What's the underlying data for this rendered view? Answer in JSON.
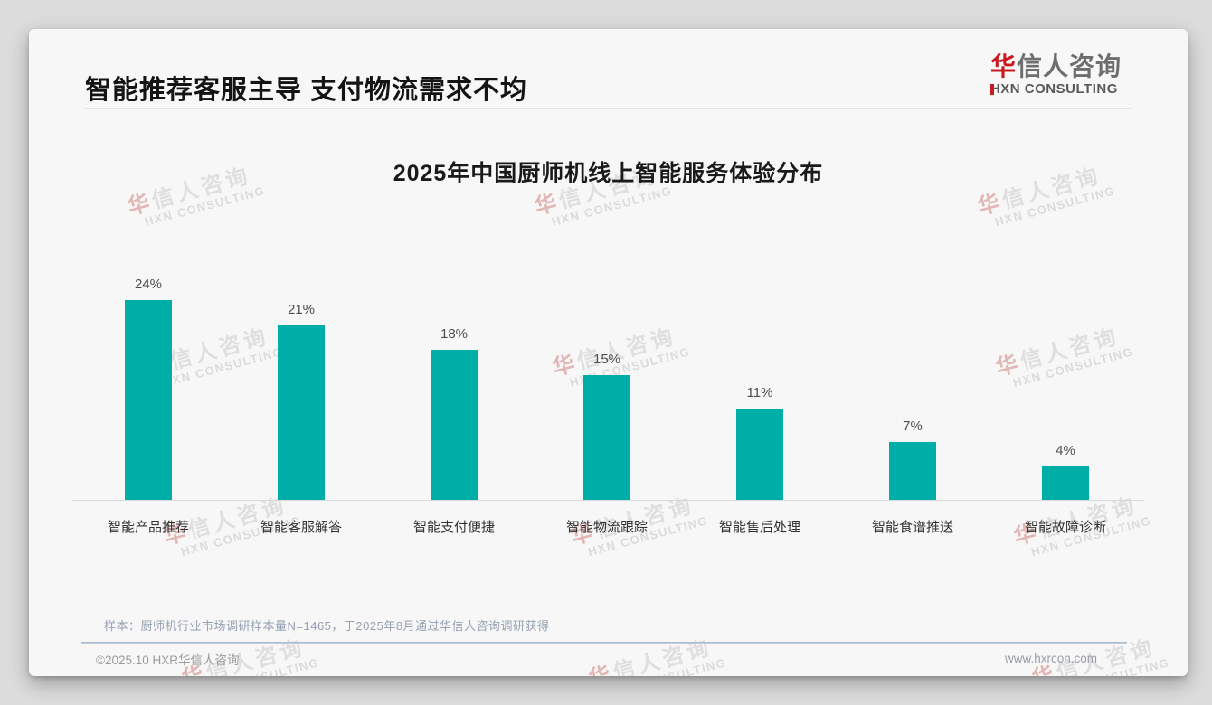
{
  "header": {
    "title": "智能推荐客服主导 支付物流需求不均",
    "logo": {
      "cn_first": "华",
      "cn_rest": "信人咨询",
      "en": "HXN CONSULTING"
    }
  },
  "watermark": {
    "cn_first": "华",
    "cn_rest": "信人咨询",
    "en": "HXN CONSULTING"
  },
  "chart_data": {
    "type": "bar",
    "title": "2025年中国厨师机线上智能服务体验分布",
    "categories": [
      "智能产品推荐",
      "智能客服解答",
      "智能支付便捷",
      "智能物流跟踪",
      "智能售后处理",
      "智能食谱推送",
      "智能故障诊断"
    ],
    "values": [
      24,
      21,
      18,
      15,
      11,
      7,
      4
    ],
    "value_labels": [
      "24%",
      "21%",
      "18%",
      "15%",
      "11%",
      "7%",
      "4%"
    ],
    "unit": "%",
    "xlabel": "",
    "ylabel": "",
    "ylim": [
      0,
      26
    ],
    "grid": false,
    "legend": false,
    "bar_color": "#00AEA8"
  },
  "footnote": "样本：厨师机行业市场调研样本量N=1465，于2025年8月通过华信人咨询调研获得",
  "footer": {
    "copyright": "©2025.10 HXR华信人咨询",
    "website": "www.hxrcon.com"
  },
  "colors": {
    "accent_teal": "#00AEA8",
    "logo_red": "#C8191E",
    "divider_blue": "#9FB2C5",
    "card_bg": "#F7F7F7",
    "page_bg": "#DCDCDC"
  }
}
